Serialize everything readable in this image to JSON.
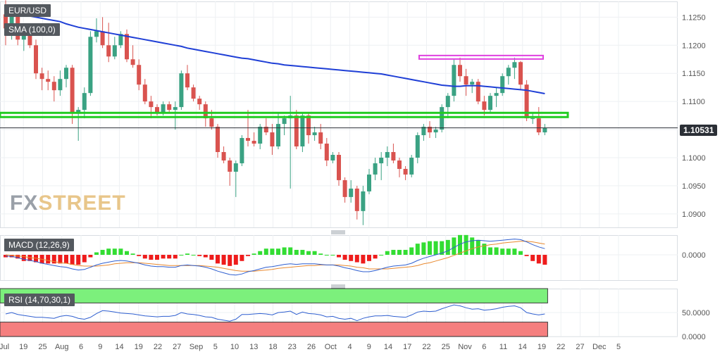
{
  "labels": {
    "symbol": "EUR/USD",
    "sma": "SMA (100,0)",
    "macd": "MACD (12,26,9)",
    "rsi": "RSI (14,70,30,1)",
    "last_price": "1.10531",
    "watermark_fx": "FX",
    "watermark_street": "STREET"
  },
  "colors": {
    "bull": "#3aa283",
    "bear": "#d9534f",
    "sma": "#1f3fd6",
    "support": "#22cc22",
    "resistance": "#e040e0",
    "macd_line": "#2f5fd0",
    "signal_line": "#e8892f",
    "hist_pos": "#33dd33",
    "hist_neg": "#ee1c1c",
    "rsi_line": "#2f5fd0",
    "overbought_zone": "#7cf07c",
    "oversold_zone": "#f57f7f"
  },
  "chart_data": [
    {
      "type": "candlestick",
      "title": "EUR/USD",
      "x_tick_labels": [
        "Jul",
        "19",
        "25",
        "Aug",
        "6",
        "9",
        "14",
        "19",
        "22",
        "27",
        "Sep",
        "5",
        "10",
        "13",
        "18",
        "23",
        "26",
        "Oct",
        "4",
        "9",
        "14",
        "17",
        "22",
        "25",
        "Nov",
        "6",
        "11",
        "14",
        "19",
        "22",
        "27",
        "Dec",
        "5"
      ],
      "y_ticks": [
        "1.1250",
        "1.1200",
        "1.1150",
        "1.1100",
        "1.1050",
        "1.1000",
        "1.0950",
        "1.0900"
      ],
      "y_range": [
        1.0876,
        1.1278
      ],
      "last_price": 1.10531,
      "grid": true,
      "ohlc": [
        [
          1.1255,
          1.128,
          1.12,
          1.123
        ],
        [
          1.123,
          1.1262,
          1.121,
          1.1255
        ],
        [
          1.1255,
          1.1265,
          1.12,
          1.121
        ],
        [
          1.121,
          1.1235,
          1.119,
          1.122
        ],
        [
          1.122,
          1.1225,
          1.1195,
          1.12
        ],
        [
          1.12,
          1.121,
          1.114,
          1.115
        ],
        [
          1.115,
          1.116,
          1.112,
          1.114
        ],
        [
          1.114,
          1.1155,
          1.112,
          1.1135
        ],
        [
          1.1135,
          1.1145,
          1.11,
          1.112
        ],
        [
          1.112,
          1.1155,
          1.111,
          1.114
        ],
        [
          1.114,
          1.1165,
          1.1125,
          1.116
        ],
        [
          1.116,
          1.1165,
          1.106,
          1.108
        ],
        [
          1.108,
          1.109,
          1.103,
          1.1085
        ],
        [
          1.1085,
          1.1125,
          1.107,
          1.1115
        ],
        [
          1.1115,
          1.1225,
          1.111,
          1.1215
        ],
        [
          1.1215,
          1.1248,
          1.1205,
          1.1225
        ],
        [
          1.1225,
          1.125,
          1.1195,
          1.12
        ],
        [
          1.12,
          1.124,
          1.117,
          1.118
        ],
        [
          1.118,
          1.1215,
          1.1175,
          1.12
        ],
        [
          1.12,
          1.1225,
          1.1195,
          1.122
        ],
        [
          1.122,
          1.1228,
          1.117,
          1.1175
        ],
        [
          1.1175,
          1.12,
          1.116,
          1.1165
        ],
        [
          1.1165,
          1.1175,
          1.112,
          1.113
        ],
        [
          1.113,
          1.114,
          1.1095,
          1.11
        ],
        [
          1.11,
          1.111,
          1.107,
          1.109
        ],
        [
          1.109,
          1.1095,
          1.1075,
          1.108
        ],
        [
          1.108,
          1.11,
          1.1075,
          1.1095
        ],
        [
          1.1095,
          1.11,
          1.108,
          1.1085
        ],
        [
          1.1085,
          1.11,
          1.105,
          1.109
        ],
        [
          1.109,
          1.1155,
          1.1085,
          1.115
        ],
        [
          1.115,
          1.1165,
          1.112,
          1.1125
        ],
        [
          1.1125,
          1.113,
          1.11,
          1.1105
        ],
        [
          1.1105,
          1.111,
          1.1085,
          1.1095
        ],
        [
          1.1095,
          1.11,
          1.1055,
          1.107
        ],
        [
          1.107,
          1.1085,
          1.105,
          1.1055
        ],
        [
          1.1055,
          1.106,
          1.1,
          1.101
        ],
        [
          1.101,
          1.102,
          1.099,
          1.0995
        ],
        [
          1.0995,
          1.1,
          1.095,
          1.0975
        ],
        [
          1.0975,
          1.0995,
          1.093,
          1.099
        ],
        [
          1.099,
          1.104,
          1.0985,
          1.1035
        ],
        [
          1.1035,
          1.1085,
          1.102,
          1.103
        ],
        [
          1.103,
          1.1045,
          1.102,
          1.1025
        ],
        [
          1.1025,
          1.106,
          1.1015,
          1.1055
        ],
        [
          1.1055,
          1.107,
          1.104,
          1.1045
        ],
        [
          1.1045,
          1.106,
          1.1005,
          1.102
        ],
        [
          1.102,
          1.108,
          1.1015,
          1.106
        ],
        [
          1.106,
          1.1075,
          1.104,
          1.107
        ],
        [
          1.107,
          1.111,
          1.0945,
          1.1075
        ],
        [
          1.1075,
          1.1085,
          1.1015,
          1.102
        ],
        [
          1.102,
          1.108,
          1.101,
          1.1075
        ],
        [
          1.1075,
          1.108,
          1.1025,
          1.104
        ],
        [
          1.104,
          1.1055,
          1.103,
          1.1045
        ],
        [
          1.1045,
          1.106,
          1.1015,
          1.1025
        ],
        [
          1.1025,
          1.1035,
          1.0985,
          1.0995
        ],
        [
          1.0995,
          1.101,
          1.099,
          1.1005
        ],
        [
          1.1005,
          1.101,
          1.095,
          1.096
        ],
        [
          1.096,
          1.0965,
          1.092,
          1.093
        ],
        [
          1.093,
          1.096,
          1.092,
          1.0945
        ],
        [
          1.0945,
          1.095,
          1.089,
          1.0905
        ],
        [
          1.0905,
          1.095,
          1.088,
          1.094
        ],
        [
          1.094,
          1.098,
          1.0935,
          1.097
        ],
        [
          1.097,
          1.1,
          1.096,
          1.099
        ],
        [
          1.099,
          1.101,
          1.096,
          1.1
        ],
        [
          1.1,
          1.102,
          1.0985,
          1.101
        ],
        [
          1.101,
          1.1025,
          1.099,
          1.0995
        ],
        [
          1.0995,
          1.1,
          1.0965,
          1.098
        ],
        [
          1.098,
          1.0985,
          1.096,
          1.097
        ],
        [
          1.097,
          1.1005,
          1.0965,
          1.1
        ],
        [
          1.1,
          1.1045,
          1.099,
          1.104
        ],
        [
          1.104,
          1.106,
          1.103,
          1.1055
        ],
        [
          1.1055,
          1.1065,
          1.1035,
          1.1045
        ],
        [
          1.1045,
          1.1055,
          1.1035,
          1.105
        ],
        [
          1.105,
          1.1095,
          1.1045,
          1.109
        ],
        [
          1.109,
          1.1115,
          1.107,
          1.111
        ],
        [
          1.111,
          1.1175,
          1.11,
          1.1165
        ],
        [
          1.1165,
          1.1178,
          1.1135,
          1.1145
        ],
        [
          1.1145,
          1.1158,
          1.111,
          1.113
        ],
        [
          1.113,
          1.114,
          1.1115,
          1.1135
        ],
        [
          1.1135,
          1.114,
          1.1095,
          1.11
        ],
        [
          1.11,
          1.111,
          1.1075,
          1.1085
        ],
        [
          1.1085,
          1.1115,
          1.108,
          1.111
        ],
        [
          1.111,
          1.1125,
          1.109,
          1.1115
        ],
        [
          1.1115,
          1.115,
          1.111,
          1.1145
        ],
        [
          1.1145,
          1.1165,
          1.113,
          1.116
        ],
        [
          1.116,
          1.1178,
          1.114,
          1.117
        ],
        [
          1.117,
          1.1172,
          1.112,
          1.113
        ],
        [
          1.113,
          1.1138,
          1.1065,
          1.107
        ],
        [
          1.107,
          1.108,
          1.106,
          1.107
        ],
        [
          1.107,
          1.109,
          1.104,
          1.1045
        ],
        [
          1.1045,
          1.106,
          1.104,
          1.1053
        ]
      ],
      "sma_100": [
        1.126,
        1.1258,
        1.1256,
        1.1254,
        1.1252,
        1.125,
        1.1248,
        1.1246,
        1.1244,
        1.1242,
        1.1238,
        1.1235,
        1.1232,
        1.123,
        1.1228,
        1.1226,
        1.1224,
        1.1222,
        1.122,
        1.1218,
        1.1216,
        1.1214,
        1.1212,
        1.121,
        1.1208,
        1.1206,
        1.1204,
        1.1202,
        1.12,
        1.1198,
        1.1195,
        1.1193,
        1.1191,
        1.1189,
        1.1187,
        1.1185,
        1.1183,
        1.1181,
        1.1179,
        1.1177,
        1.1176,
        1.1174,
        1.1172,
        1.117,
        1.1168,
        1.1167,
        1.1165,
        1.1164,
        1.1163,
        1.1162,
        1.1161,
        1.116,
        1.1159,
        1.1158,
        1.1157,
        1.1156,
        1.1155,
        1.1154,
        1.1153,
        1.1152,
        1.1151,
        1.115,
        1.1149,
        1.1147,
        1.1145,
        1.1143,
        1.1141,
        1.1139,
        1.1137,
        1.1135,
        1.1133,
        1.1131,
        1.1129,
        1.1128,
        1.1127,
        1.1127,
        1.1128,
        1.1128,
        1.1128,
        1.1127,
        1.1126,
        1.1125,
        1.1124,
        1.1123,
        1.1122,
        1.1121,
        1.112,
        1.1118,
        1.1116,
        1.1114
      ],
      "support_level": 1.1076,
      "resistance_level": 1.1178
    },
    {
      "type": "line",
      "title": "MACD (12,26,9)",
      "y_ticks": [
        "0.0000"
      ],
      "y_range": [
        -0.0045,
        0.0035
      ],
      "macd": [
        -0.0002,
        -0.0003,
        -0.0005,
        -0.0008,
        -0.001,
        -0.0012,
        -0.0015,
        -0.0017,
        -0.0019,
        -0.0021,
        -0.0022,
        -0.0025,
        -0.0027,
        -0.0026,
        -0.0022,
        -0.0018,
        -0.0015,
        -0.0013,
        -0.0011,
        -0.001,
        -0.0011,
        -0.0013,
        -0.0015,
        -0.0018,
        -0.002,
        -0.0021,
        -0.0021,
        -0.0022,
        -0.0022,
        -0.0019,
        -0.0018,
        -0.0019,
        -0.002,
        -0.0022,
        -0.0025,
        -0.0029,
        -0.0032,
        -0.0035,
        -0.0036,
        -0.0034,
        -0.003,
        -0.0028,
        -0.0025,
        -0.0022,
        -0.0021,
        -0.0019,
        -0.0017,
        -0.0016,
        -0.0017,
        -0.0016,
        -0.0016,
        -0.0016,
        -0.0017,
        -0.0018,
        -0.0018,
        -0.002,
        -0.0023,
        -0.0025,
        -0.0028,
        -0.003,
        -0.003,
        -0.0028,
        -0.0025,
        -0.0022,
        -0.002,
        -0.0019,
        -0.0018,
        -0.0015,
        -0.001,
        -0.0006,
        -0.0003,
        0.0,
        0.0003,
        0.0007,
        0.0013,
        0.0019,
        0.0023,
        0.0025,
        0.0026,
        0.0025,
        0.0024,
        0.0025,
        0.0026,
        0.0027,
        0.0028,
        0.0027,
        0.0023,
        0.0018,
        0.0014,
        0.0011
      ],
      "signal": [
        0.0,
        -0.0001,
        -0.0002,
        -0.0003,
        -0.0005,
        -0.0006,
        -0.0008,
        -0.001,
        -0.0012,
        -0.0014,
        -0.0015,
        -0.0017,
        -0.0019,
        -0.002,
        -0.002,
        -0.002,
        -0.0019,
        -0.0018,
        -0.0016,
        -0.0015,
        -0.0014,
        -0.0014,
        -0.0014,
        -0.0015,
        -0.0016,
        -0.0017,
        -0.0018,
        -0.0019,
        -0.0019,
        -0.0019,
        -0.0019,
        -0.0019,
        -0.0019,
        -0.002,
        -0.0021,
        -0.0022,
        -0.0024,
        -0.0026,
        -0.0028,
        -0.0029,
        -0.0029,
        -0.0029,
        -0.0028,
        -0.0027,
        -0.0026,
        -0.0024,
        -0.0023,
        -0.0022,
        -0.0021,
        -0.002,
        -0.0019,
        -0.0019,
        -0.0018,
        -0.0018,
        -0.0018,
        -0.0018,
        -0.0019,
        -0.002,
        -0.0022,
        -0.0023,
        -0.0025,
        -0.0025,
        -0.0025,
        -0.0025,
        -0.0024,
        -0.0023,
        -0.0022,
        -0.0021,
        -0.0019,
        -0.0016,
        -0.0014,
        -0.0011,
        -0.0008,
        -0.0005,
        -0.0001,
        0.0003,
        0.0007,
        0.0011,
        0.0014,
        0.0016,
        0.0018,
        0.0019,
        0.0021,
        0.0022,
        0.0023,
        0.0024,
        0.0024,
        0.0023,
        0.0021,
        0.0019
      ]
    },
    {
      "type": "line",
      "title": "RSI (14,70,30,1)",
      "y_ticks": [
        "50.0000",
        "0.0000"
      ],
      "y_range": [
        0,
        100
      ],
      "overbought": 70,
      "oversold": 30,
      "rsi": [
        47,
        50,
        46,
        44,
        42,
        40,
        40,
        39,
        38,
        42,
        44,
        42,
        38,
        36,
        40,
        48,
        54,
        53,
        51,
        49,
        48,
        47,
        45,
        43,
        42,
        41,
        42,
        42,
        44,
        50,
        47,
        46,
        44,
        41,
        40,
        36,
        34,
        32,
        36,
        46,
        46,
        47,
        48,
        47,
        45,
        50,
        51,
        53,
        46,
        51,
        48,
        47,
        45,
        41,
        42,
        38,
        36,
        38,
        33,
        38,
        41,
        43,
        43,
        44,
        42,
        41,
        40,
        45,
        51,
        53,
        52,
        53,
        58,
        62,
        66,
        64,
        60,
        57,
        58,
        55,
        56,
        58,
        61,
        63,
        64,
        60,
        50,
        47,
        45,
        47
      ]
    }
  ]
}
